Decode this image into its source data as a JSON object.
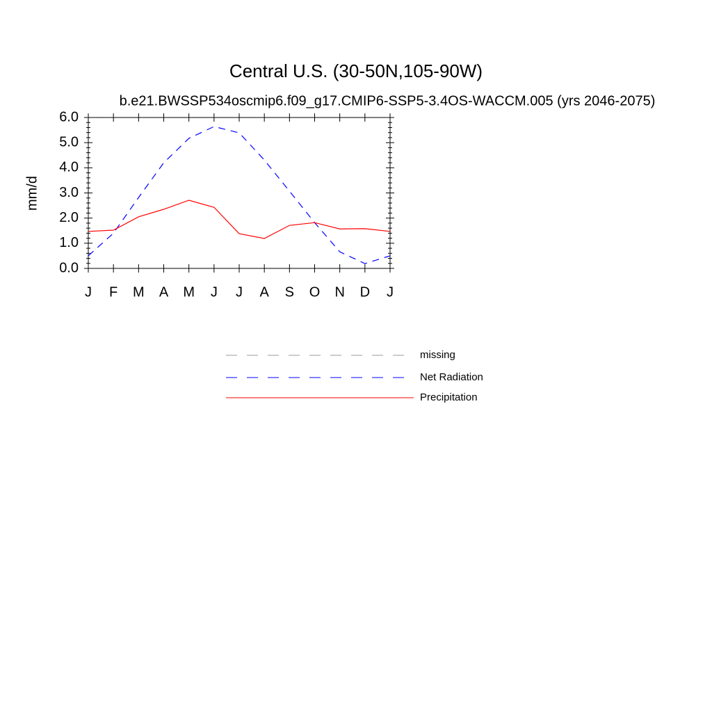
{
  "chart_data": {
    "type": "line",
    "title": "Central U.S. (30-50N,105-90W)",
    "subtitle": "b.e21.BWSSP534oscmip6.f09_g17.CMIP6-SSP5-3.4OS-WACCM.005 (yrs 2046-2075)",
    "ylabel": "mm/d",
    "categories": [
      "J",
      "F",
      "M",
      "A",
      "M",
      "J",
      "J",
      "A",
      "S",
      "O",
      "N",
      "D",
      "J"
    ],
    "series": [
      {
        "name": "missing",
        "color": "#999999",
        "dashed": true,
        "values": [
          null,
          null,
          null,
          null,
          null,
          null,
          null,
          null,
          null,
          null,
          null,
          null,
          null
        ]
      },
      {
        "name": "Net Radiation",
        "color": "#0000ff",
        "dashed": true,
        "values": [
          0.5,
          1.4,
          2.82,
          4.2,
          5.17,
          5.64,
          5.39,
          4.31,
          3.07,
          1.82,
          0.66,
          0.19,
          0.5
        ]
      },
      {
        "name": "Precipitation",
        "color": "#ff0000",
        "dashed": false,
        "values": [
          1.47,
          1.52,
          2.05,
          2.35,
          2.71,
          2.43,
          1.38,
          1.19,
          1.71,
          1.82,
          1.57,
          1.58,
          1.47
        ]
      }
    ],
    "ylim": [
      0,
      6
    ],
    "yticks": [
      {
        "value": 0,
        "label": "0.0"
      },
      {
        "value": 1,
        "label": "1.0"
      },
      {
        "value": 2,
        "label": "2.0"
      },
      {
        "value": 3,
        "label": "3.0"
      },
      {
        "value": 4,
        "label": "4.0"
      },
      {
        "value": 5,
        "label": "5.0"
      },
      {
        "value": 6,
        "label": "6.0"
      }
    ],
    "grid": false
  }
}
